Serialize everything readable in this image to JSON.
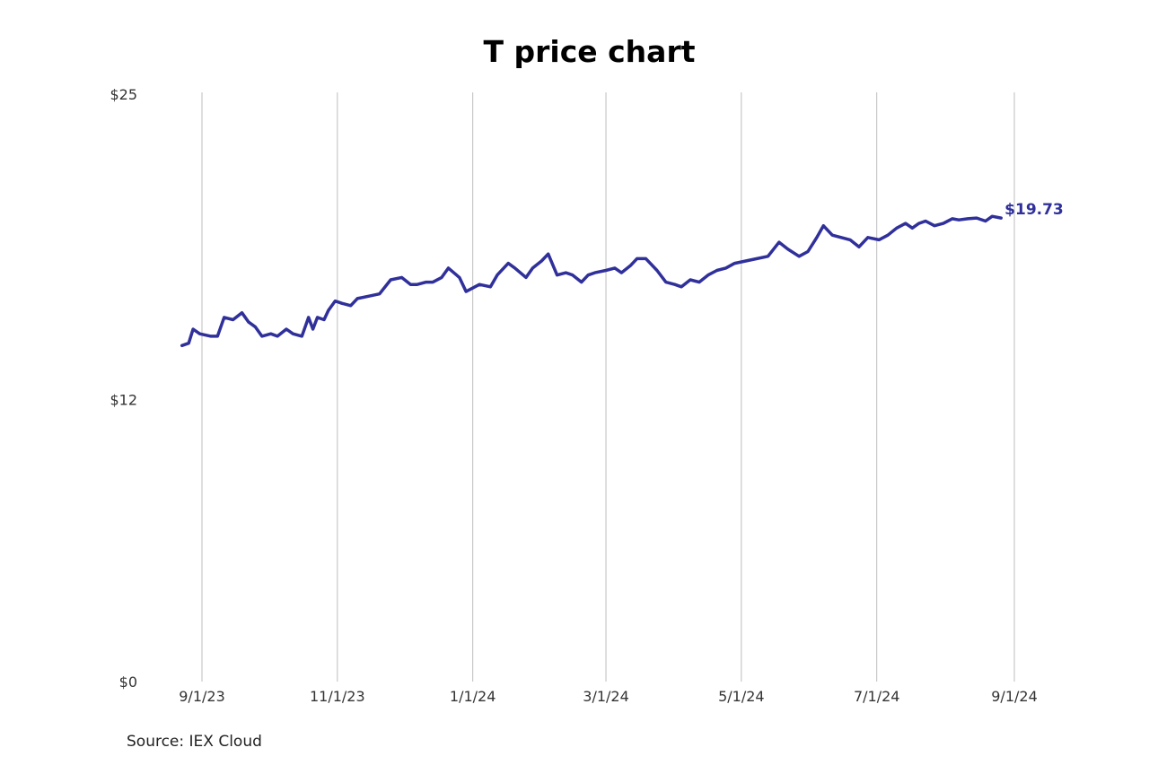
{
  "chart_data": {
    "type": "line",
    "title": "T price chart",
    "source": "Source: IEX Cloud",
    "xlabel": "",
    "ylabel": "",
    "x_ticks": [
      "2023-09-01",
      "2023-11-01",
      "2024-01-01",
      "2024-03-01",
      "2024-05-01",
      "2024-07-01",
      "2024-09-01"
    ],
    "x_tick_labels": [
      "9/1/23",
      "11/1/23",
      "1/1/24",
      "3/1/24",
      "5/1/24",
      "7/1/24",
      "9/1/24"
    ],
    "y_ticks": [
      0,
      12,
      25
    ],
    "y_tick_labels": [
      "$0",
      "$12",
      "$25"
    ],
    "ylim": [
      0,
      25
    ],
    "xlim": [
      "2023-08-23",
      "2024-09-01"
    ],
    "grid": "vertical",
    "line_color": "#30309b",
    "end_label": "$19.73",
    "series": [
      {
        "x": [
          "2023-08-23",
          "2023-08-26",
          "2023-08-28",
          "2023-08-31",
          "2023-09-05",
          "2023-09-08",
          "2023-09-11",
          "2023-09-15",
          "2023-09-19",
          "2023-09-22",
          "2023-09-25",
          "2023-09-28",
          "2023-10-02",
          "2023-10-05",
          "2023-10-09",
          "2023-10-12",
          "2023-10-16",
          "2023-10-19",
          "2023-10-21",
          "2023-10-23",
          "2023-10-26",
          "2023-10-28",
          "2023-10-31",
          "2023-11-03",
          "2023-11-07",
          "2023-11-10",
          "2023-11-15",
          "2023-11-20",
          "2023-11-25",
          "2023-11-30",
          "2023-12-04",
          "2023-12-07",
          "2023-12-11",
          "2023-12-14",
          "2023-12-18",
          "2023-12-21",
          "2023-12-26",
          "2023-12-29",
          "2024-01-04",
          "2024-01-09",
          "2024-01-12",
          "2024-01-17",
          "2024-01-20",
          "2024-01-25",
          "2024-01-28",
          "2024-02-01",
          "2024-02-04",
          "2024-02-08",
          "2024-02-12",
          "2024-02-15",
          "2024-02-19",
          "2024-02-22",
          "2024-02-25",
          "2024-03-01",
          "2024-03-05",
          "2024-03-08",
          "2024-03-12",
          "2024-03-15",
          "2024-03-19",
          "2024-03-24",
          "2024-03-28",
          "2024-04-01",
          "2024-04-04",
          "2024-04-08",
          "2024-04-12",
          "2024-04-16",
          "2024-04-20",
          "2024-04-24",
          "2024-04-28",
          "2024-05-03",
          "2024-05-08",
          "2024-05-13",
          "2024-05-18",
          "2024-05-22",
          "2024-05-27",
          "2024-05-31",
          "2024-06-04",
          "2024-06-07",
          "2024-06-11",
          "2024-06-15",
          "2024-06-19",
          "2024-06-23",
          "2024-06-27",
          "2024-07-02",
          "2024-07-06",
          "2024-07-10",
          "2024-07-14",
          "2024-07-17",
          "2024-07-20",
          "2024-07-23",
          "2024-07-27",
          "2024-07-31",
          "2024-08-04",
          "2024-08-07",
          "2024-08-11",
          "2024-08-15",
          "2024-08-19",
          "2024-08-22",
          "2024-08-26"
        ],
        "values": [
          14.3,
          14.4,
          15.0,
          14.8,
          14.7,
          14.7,
          15.5,
          15.4,
          15.7,
          15.3,
          15.1,
          14.7,
          14.8,
          14.7,
          15.0,
          14.8,
          14.7,
          15.5,
          15.0,
          15.5,
          15.4,
          15.8,
          16.2,
          16.1,
          16.0,
          16.3,
          16.4,
          16.5,
          17.1,
          17.2,
          16.9,
          16.9,
          17.0,
          17.0,
          17.2,
          17.6,
          17.2,
          16.6,
          16.9,
          16.8,
          17.3,
          17.8,
          17.6,
          17.2,
          17.6,
          17.9,
          18.2,
          17.3,
          17.4,
          17.3,
          17.0,
          17.3,
          17.4,
          17.5,
          17.6,
          17.4,
          17.7,
          18.0,
          18.0,
          17.5,
          17.0,
          16.9,
          16.8,
          17.1,
          17.0,
          17.3,
          17.5,
          17.6,
          17.8,
          17.9,
          18.0,
          18.1,
          18.7,
          18.4,
          18.1,
          18.3,
          18.9,
          19.4,
          19.0,
          18.9,
          18.8,
          18.5,
          18.9,
          18.8,
          19.0,
          19.3,
          19.5,
          19.3,
          19.5,
          19.6,
          19.4,
          19.5,
          19.7,
          19.65,
          19.7,
          19.73,
          19.6,
          19.8,
          19.73
        ]
      }
    ]
  }
}
